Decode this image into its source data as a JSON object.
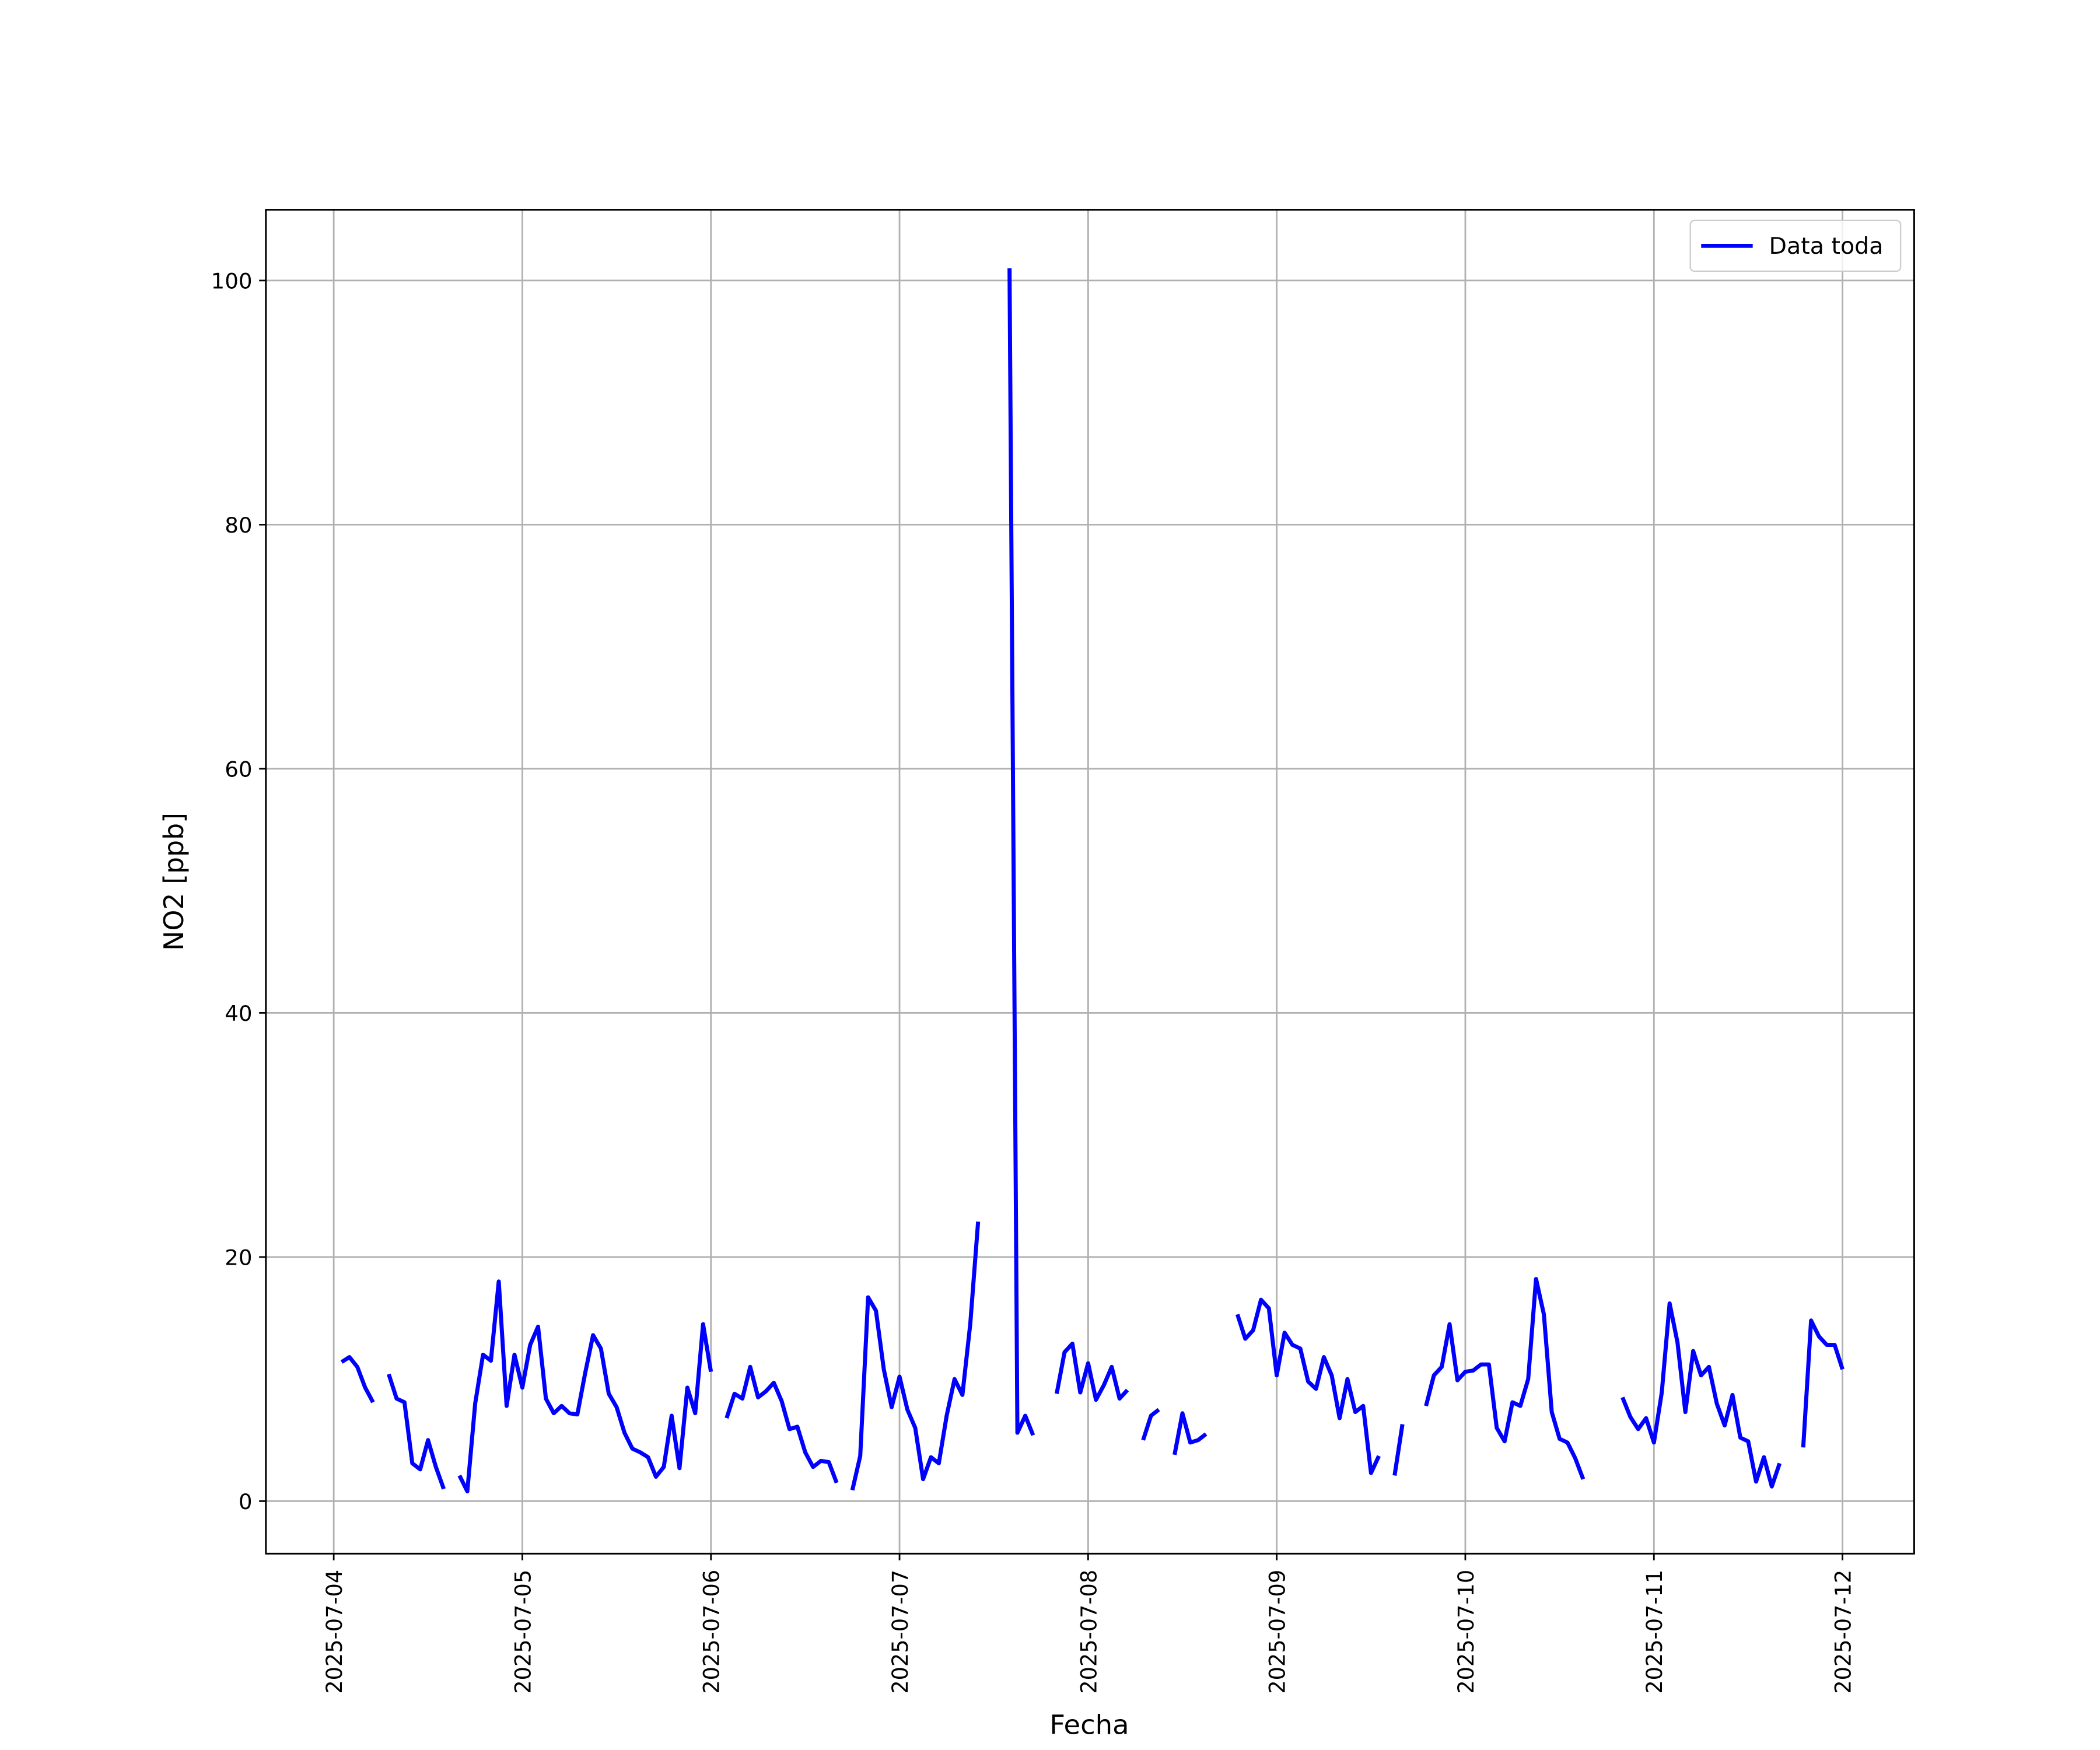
{
  "chart_data": {
    "type": "line",
    "xlabel": "Fecha",
    "ylabel": "NO2 [ppb]",
    "grid": true,
    "legend": "upper right",
    "xlim": [
      "2025-07-03 15:22",
      "2025-07-12 09:07"
    ],
    "ylim": [
      -4.3,
      105.8
    ],
    "xticks": [
      "2025-07-04",
      "2025-07-05",
      "2025-07-06",
      "2025-07-07",
      "2025-07-08",
      "2025-07-09",
      "2025-07-10",
      "2025-07-11",
      "2025-07-12"
    ],
    "yticks": [
      0,
      20,
      40,
      60,
      80,
      100
    ],
    "x": [
      "2025-07-04 01:00",
      "2025-07-04 02:00",
      "2025-07-04 03:00",
      "2025-07-04 04:00",
      "2025-07-04 05:00",
      "2025-07-04 06:00",
      "2025-07-04 07:00",
      "2025-07-04 08:00",
      "2025-07-04 09:00",
      "2025-07-04 10:00",
      "2025-07-04 11:00",
      "2025-07-04 12:00",
      "2025-07-04 13:00",
      "2025-07-04 14:00",
      "2025-07-04 15:00",
      "2025-07-04 16:00",
      "2025-07-04 17:00",
      "2025-07-04 18:00",
      "2025-07-04 19:00",
      "2025-07-04 20:00",
      "2025-07-04 21:00",
      "2025-07-04 22:00",
      "2025-07-04 23:00",
      "2025-07-05 00:00",
      "2025-07-05 01:00",
      "2025-07-05 02:00",
      "2025-07-05 03:00",
      "2025-07-05 04:00",
      "2025-07-05 05:00",
      "2025-07-05 06:00",
      "2025-07-05 07:00",
      "2025-07-05 08:00",
      "2025-07-05 09:00",
      "2025-07-05 10:00",
      "2025-07-05 11:00",
      "2025-07-05 12:00",
      "2025-07-05 13:00",
      "2025-07-05 14:00",
      "2025-07-05 15:00",
      "2025-07-05 16:00",
      "2025-07-05 17:00",
      "2025-07-05 18:00",
      "2025-07-05 19:00",
      "2025-07-05 20:00",
      "2025-07-05 21:00",
      "2025-07-05 22:00",
      "2025-07-05 23:00",
      "2025-07-06 00:00",
      "2025-07-06 01:00",
      "2025-07-06 02:00",
      "2025-07-06 03:00",
      "2025-07-06 04:00",
      "2025-07-06 05:00",
      "2025-07-06 06:00",
      "2025-07-06 07:00",
      "2025-07-06 08:00",
      "2025-07-06 09:00",
      "2025-07-06 10:00",
      "2025-07-06 11:00",
      "2025-07-06 12:00",
      "2025-07-06 13:00",
      "2025-07-06 14:00",
      "2025-07-06 15:00",
      "2025-07-06 16:00",
      "2025-07-06 17:00",
      "2025-07-06 18:00",
      "2025-07-06 19:00",
      "2025-07-06 20:00",
      "2025-07-06 21:00",
      "2025-07-06 22:00",
      "2025-07-06 23:00",
      "2025-07-07 00:00",
      "2025-07-07 01:00",
      "2025-07-07 02:00",
      "2025-07-07 03:00",
      "2025-07-07 04:00",
      "2025-07-07 05:00",
      "2025-07-07 06:00",
      "2025-07-07 07:00",
      "2025-07-07 08:00",
      "2025-07-07 09:00",
      "2025-07-07 10:00",
      "2025-07-07 11:00",
      "2025-07-07 12:00",
      "2025-07-07 13:00",
      "2025-07-07 14:00",
      "2025-07-07 15:00",
      "2025-07-07 16:00",
      "2025-07-07 17:00",
      "2025-07-07 18:00",
      "2025-07-07 19:00",
      "2025-07-07 20:00",
      "2025-07-07 21:00",
      "2025-07-07 22:00",
      "2025-07-07 23:00",
      "2025-07-08 00:00",
      "2025-07-08 01:00",
      "2025-07-08 02:00",
      "2025-07-08 03:00",
      "2025-07-08 04:00",
      "2025-07-08 05:00",
      "2025-07-08 06:00",
      "2025-07-08 07:00",
      "2025-07-08 08:00",
      "2025-07-08 09:00",
      "2025-07-08 10:00",
      "2025-07-08 11:00",
      "2025-07-08 12:00",
      "2025-07-08 13:00",
      "2025-07-08 14:00",
      "2025-07-08 15:00",
      "2025-07-08 16:00",
      "2025-07-08 17:00",
      "2025-07-08 18:00",
      "2025-07-08 19:00",
      "2025-07-08 20:00",
      "2025-07-08 21:00",
      "2025-07-08 22:00",
      "2025-07-08 23:00",
      "2025-07-09 00:00",
      "2025-07-09 01:00",
      "2025-07-09 02:00",
      "2025-07-09 03:00",
      "2025-07-09 04:00",
      "2025-07-09 05:00",
      "2025-07-09 06:00",
      "2025-07-09 07:00",
      "2025-07-09 08:00",
      "2025-07-09 09:00",
      "2025-07-09 10:00",
      "2025-07-09 11:00",
      "2025-07-09 12:00",
      "2025-07-09 13:00",
      "2025-07-09 14:00",
      "2025-07-09 15:00",
      "2025-07-09 16:00",
      "2025-07-09 17:00",
      "2025-07-09 18:00",
      "2025-07-09 19:00",
      "2025-07-09 20:00",
      "2025-07-09 21:00",
      "2025-07-09 22:00",
      "2025-07-09 23:00",
      "2025-07-10 00:00",
      "2025-07-10 01:00",
      "2025-07-10 02:00",
      "2025-07-10 03:00",
      "2025-07-10 04:00",
      "2025-07-10 05:00",
      "2025-07-10 06:00",
      "2025-07-10 07:00",
      "2025-07-10 08:00",
      "2025-07-10 09:00",
      "2025-07-10 10:00",
      "2025-07-10 11:00",
      "2025-07-10 12:00",
      "2025-07-10 13:00",
      "2025-07-10 14:00",
      "2025-07-10 15:00",
      "2025-07-10 16:00",
      "2025-07-10 17:00",
      "2025-07-10 18:00",
      "2025-07-10 19:00",
      "2025-07-10 20:00",
      "2025-07-10 21:00",
      "2025-07-10 22:00",
      "2025-07-10 23:00",
      "2025-07-11 00:00",
      "2025-07-11 01:00",
      "2025-07-11 02:00",
      "2025-07-11 03:00",
      "2025-07-11 04:00",
      "2025-07-11 05:00",
      "2025-07-11 06:00",
      "2025-07-11 07:00",
      "2025-07-11 08:00",
      "2025-07-11 09:00",
      "2025-07-11 10:00",
      "2025-07-11 11:00",
      "2025-07-11 12:00",
      "2025-07-11 13:00",
      "2025-07-11 14:00",
      "2025-07-11 15:00",
      "2025-07-11 16:00",
      "2025-07-11 17:00",
      "2025-07-11 18:00",
      "2025-07-11 19:00",
      "2025-07-11 20:00",
      "2025-07-11 21:00",
      "2025-07-11 22:00",
      "2025-07-11 23:00",
      "2025-07-12 00:00"
    ],
    "series": [
      {
        "name": "Data toda",
        "color": "#0000ff",
        "values": [
          11.4,
          11.8,
          11,
          9.3,
          8.1,
          null,
          10.4,
          8.4,
          8.1,
          3.1,
          2.6,
          5.0,
          2.8,
          1.0,
          null,
          2.1,
          0.8,
          8,
          12,
          11.5,
          18,
          7.8,
          12,
          9.3,
          12.8,
          14.3,
          8.4,
          7.2,
          7.8,
          7.2,
          7.1,
          10.5,
          13.6,
          12.5,
          8.8,
          7.7,
          5.6,
          4.3,
          4,
          3.6,
          2,
          2.8,
          7,
          2.7,
          9.3,
          7.2,
          14.5,
          10.6,
          null,
          6.8,
          8.8,
          8.4,
          11,
          8.5,
          9,
          9.7,
          8.2,
          5.9,
          6.1,
          4,
          2.8,
          3.3,
          3.2,
          1.5,
          null,
          0.9,
          3.7,
          16.7,
          15.6,
          10.8,
          7.7,
          10.2,
          7.5,
          6,
          1.8,
          3.6,
          3.1,
          7,
          10,
          8.7,
          14.5,
          22.9,
          null,
          null,
          null,
          101,
          5.6,
          7,
          5.4,
          null,
          null,
          8.8,
          12.2,
          12.9,
          8.9,
          11.3,
          8.3,
          9.5,
          11,
          8.4,
          9.1,
          null,
          5,
          7,
          7.5,
          null,
          3.8,
          7.2,
          4.8,
          5,
          5.5,
          null,
          null,
          null,
          15.3,
          13.3,
          14,
          16.5,
          15.8,
          10.3,
          13.8,
          12.8,
          12.5,
          9.8,
          9.2,
          11.8,
          10.3,
          6.8,
          10,
          7.3,
          7.8,
          2.3,
          3.7,
          null,
          2.1,
          6.3,
          null,
          null,
          7.8,
          10.3,
          11,
          14.5,
          9.9,
          10.6,
          10.7,
          11.2,
          11.2,
          6,
          4.9,
          8.1,
          7.8,
          10,
          18.2,
          15.3,
          7.3,
          5.1,
          4.8,
          3.5,
          1.8,
          null,
          null,
          null,
          null,
          8.5,
          6.9,
          5.9,
          6.8,
          4.8,
          8.9,
          16.2,
          13,
          7.3,
          12.3,
          10.3,
          11,
          8,
          6.2,
          8.7,
          5.2,
          4.9,
          1.6,
          3.6,
          1.2,
          3.1,
          null,
          null,
          4.4,
          14.8,
          13.5,
          12.8,
          12.8,
          10.8
        ]
      }
    ]
  }
}
